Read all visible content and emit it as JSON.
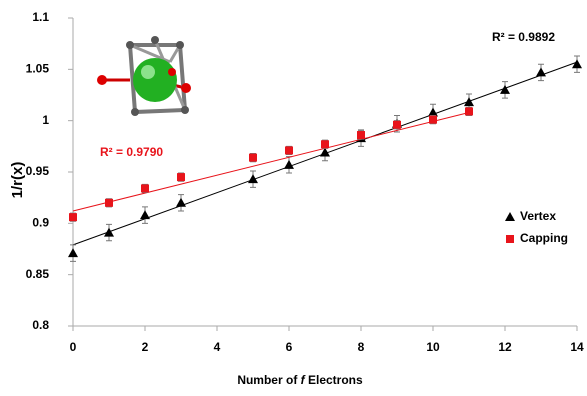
{
  "chart_data": {
    "type": "scatter",
    "x_label": [
      "Number of ",
      "f",
      " Electrons"
    ],
    "y_label": "1/r(x)",
    "xlim": [
      0,
      14
    ],
    "xticks": [
      0,
      2,
      4,
      6,
      8,
      10,
      12,
      14
    ],
    "ylim": [
      0.8,
      1.1
    ],
    "yticks": [
      0.8,
      0.85,
      0.9,
      0.95,
      1,
      1.05,
      1.1
    ],
    "legend": "right",
    "series": [
      {
        "name": "Vertex",
        "color": "#000000",
        "marker": "triangle",
        "x": [
          0,
          1,
          2,
          3,
          5,
          6,
          7,
          8,
          9,
          10,
          11,
          12,
          13,
          14
        ],
        "values": [
          0.871,
          0.891,
          0.908,
          0.92,
          0.943,
          0.957,
          0.969,
          0.983,
          0.997,
          1.008,
          1.018,
          1.03,
          1.047,
          1.055
        ],
        "errors": [
          0.008,
          0.008,
          0.008,
          0.008,
          0.008,
          0.008,
          0.008,
          0.008,
          0.008,
          0.008,
          0.008,
          0.008,
          0.008,
          0.008
        ],
        "trendline": {
          "x": [
            0,
            14
          ],
          "values": [
            0.879,
            1.057
          ],
          "r2_label": "R² = 0.9892"
        }
      },
      {
        "name": "Capping",
        "color": "#e8141b",
        "marker": "square",
        "x": [
          0,
          1,
          2,
          3,
          5,
          6,
          7,
          8,
          9,
          10,
          11
        ],
        "values": [
          0.906,
          0.92,
          0.934,
          0.945,
          0.964,
          0.971,
          0.977,
          0.986,
          0.996,
          1.001,
          1.009
        ],
        "errors": [
          0.004,
          0.004,
          0.004,
          0.004,
          0.004,
          0.004,
          0.004,
          0.004,
          0.004,
          0.004,
          0.004
        ],
        "trendline": {
          "x": [
            0,
            11
          ],
          "values": [
            0.912,
            1.008
          ],
          "r2_label": "R² = 0.9790"
        }
      }
    ]
  }
}
